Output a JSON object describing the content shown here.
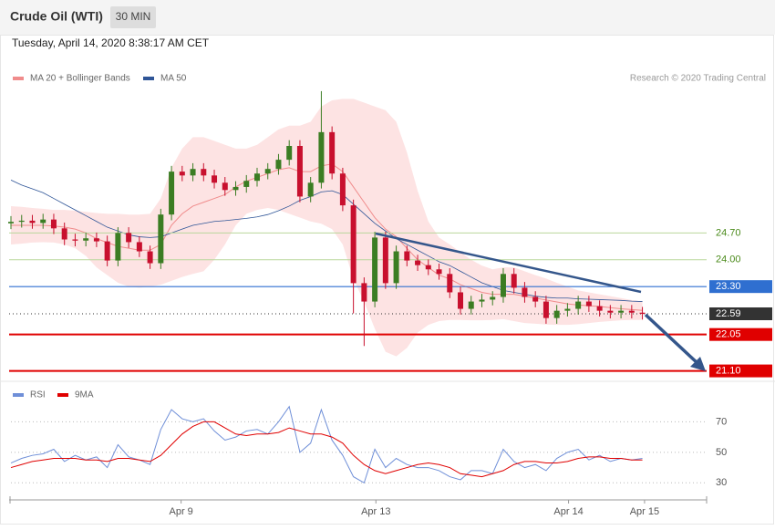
{
  "chart_data": {
    "type": "candlestick",
    "title": "Crude Oil (WTI)",
    "interval": "30 MIN",
    "subtitle": "Tuesday, April 14, 2020 8:38:17 AM CET",
    "credit": "Research © 2020 Trading Central",
    "xlim": [
      0,
      65
    ],
    "xticks": [
      {
        "value": 15.9,
        "label": "Apr 9"
      },
      {
        "value": 34.1,
        "label": "Apr 13"
      },
      {
        "value": 52.1,
        "label": "Apr 14"
      },
      {
        "value": 59.2,
        "label": "Apr 15"
      }
    ],
    "ylim": [
      20.9,
      29.35
    ],
    "up_color": "#3b7d23",
    "down_color": "#c8102e",
    "open": [
      24.95,
      24.99,
      25.02,
      24.96,
      25.05,
      24.82,
      24.53,
      24.5,
      24.56,
      24.48,
      23.98,
      24.7,
      24.46,
      24.22,
      23.91,
      25.18,
      26.3,
      26.2,
      26.37,
      26.2,
      26.01,
      25.82,
      25.9,
      26.06,
      26.25,
      26.37,
      26.61,
      26.97,
      25.65,
      26.01,
      27.33,
      26.25,
      25.42,
      23.39,
      22.91,
      24.58,
      23.39,
      24.22,
      23.98,
      23.86,
      23.75,
      23.63,
      23.15,
      22.72,
      22.91,
      22.96,
      23.03,
      23.63,
      23.27,
      23.03,
      22.91,
      22.48,
      22.67,
      22.72,
      22.91,
      22.79,
      22.67,
      22.62,
      22.67,
      22.62
    ],
    "high": [
      25.14,
      25.17,
      25.17,
      25.2,
      25.2,
      24.97,
      24.68,
      24.71,
      24.71,
      24.63,
      24.85,
      24.85,
      24.61,
      24.37,
      25.33,
      26.45,
      26.45,
      26.52,
      26.52,
      26.35,
      26.16,
      26.05,
      26.21,
      26.4,
      26.52,
      26.76,
      27.12,
      27.12,
      26.16,
      28.4,
      27.48,
      26.4,
      25.57,
      23.54,
      24.73,
      24.73,
      24.37,
      24.37,
      24.13,
      24.01,
      23.9,
      23.78,
      23.3,
      23.06,
      23.11,
      23.18,
      23.78,
      23.78,
      23.42,
      23.18,
      23.06,
      22.82,
      22.87,
      23.06,
      23.06,
      22.94,
      22.82,
      22.82,
      22.82,
      22.77
    ],
    "low": [
      24.8,
      24.84,
      24.81,
      24.81,
      24.67,
      24.38,
      24.35,
      24.35,
      24.33,
      23.83,
      23.83,
      24.31,
      24.07,
      23.76,
      23.76,
      25.03,
      26.05,
      26.05,
      26.05,
      25.86,
      25.67,
      25.67,
      25.75,
      25.91,
      26.1,
      26.22,
      26.46,
      25.5,
      25.5,
      25.86,
      26.1,
      25.27,
      22.6,
      21.75,
      22.76,
      23.24,
      23.24,
      23.83,
      23.71,
      23.6,
      23.48,
      23.0,
      22.57,
      22.57,
      22.76,
      22.81,
      22.88,
      23.12,
      22.88,
      22.76,
      22.33,
      22.33,
      22.52,
      22.57,
      22.64,
      22.52,
      22.47,
      22.47,
      22.47,
      22.44
    ],
    "close": [
      24.99,
      25.02,
      24.96,
      25.05,
      24.82,
      24.53,
      24.5,
      24.56,
      24.48,
      23.98,
      24.7,
      24.46,
      24.22,
      23.91,
      25.18,
      26.3,
      26.2,
      26.37,
      26.2,
      26.01,
      25.82,
      25.9,
      26.06,
      26.25,
      26.37,
      26.61,
      26.97,
      25.65,
      26.01,
      27.33,
      26.25,
      25.42,
      23.39,
      22.91,
      24.58,
      23.39,
      24.22,
      23.98,
      23.86,
      23.75,
      23.63,
      23.15,
      22.72,
      22.91,
      22.96,
      23.03,
      23.63,
      23.27,
      23.03,
      22.91,
      22.48,
      22.67,
      22.72,
      22.91,
      22.79,
      22.67,
      22.62,
      22.67,
      22.62,
      22.59
    ],
    "series": [
      {
        "name": "MA 20 + Bollinger Bands",
        "color": "#f08c8c",
        "values": [
          24.9,
          24.9,
          24.9,
          24.9,
          24.88,
          24.85,
          24.8,
          24.7,
          24.55,
          24.45,
          24.35,
          24.3,
          24.25,
          24.25,
          24.4,
          24.9,
          25.2,
          25.4,
          25.5,
          25.6,
          25.7,
          25.9,
          26.05,
          26.15,
          26.25,
          26.35,
          26.4,
          26.3,
          26.3,
          26.45,
          26.5,
          26.3,
          25.9,
          25.5,
          25.1,
          24.8,
          24.6,
          24.3,
          24.0,
          23.8,
          23.6,
          23.5,
          23.35,
          23.25,
          23.15,
          23.1,
          23.1,
          23.1,
          23.05,
          23.0,
          22.95,
          22.9,
          22.85,
          22.82,
          22.8,
          22.78,
          22.75,
          22.72,
          22.7,
          22.68
        ],
        "upper": [
          25.4,
          25.38,
          25.35,
          25.33,
          25.3,
          25.3,
          25.28,
          25.25,
          25.22,
          25.2,
          25.2,
          25.18,
          25.18,
          25.2,
          25.6,
          26.4,
          26.9,
          27.2,
          27.2,
          27.1,
          27.0,
          26.9,
          26.9,
          27.0,
          27.2,
          27.4,
          27.5,
          27.5,
          27.6,
          28.0,
          28.16,
          28.2,
          28.2,
          28.1,
          28.0,
          27.9,
          27.6,
          26.8,
          25.8,
          25.0,
          24.58,
          24.4,
          24.2,
          24.0,
          23.85,
          23.75,
          23.8,
          23.8,
          23.7,
          23.6,
          23.51,
          23.4,
          23.3,
          23.2,
          23.15,
          23.1,
          23.05,
          23.0,
          22.95,
          22.91
        ],
        "lower": [
          24.4,
          24.42,
          24.45,
          24.46,
          24.45,
          24.4,
          24.3,
          24.1,
          23.8,
          23.6,
          23.4,
          23.3,
          23.27,
          23.3,
          23.35,
          23.45,
          23.55,
          23.63,
          23.7,
          24.0,
          24.4,
          24.9,
          25.2,
          25.3,
          25.35,
          25.3,
          25.2,
          25.1,
          25.0,
          24.94,
          24.8,
          24.4,
          23.5,
          22.9,
          22.2,
          21.6,
          21.48,
          21.7,
          22.1,
          22.3,
          22.4,
          22.43,
          22.43,
          22.42,
          22.42,
          22.43,
          22.45,
          22.4,
          22.35,
          22.33,
          22.31,
          22.3,
          22.3,
          22.32,
          22.35,
          22.38,
          22.4,
          22.42,
          22.43,
          22.43
        ]
      },
      {
        "name": "MA 50",
        "color": "#2f5597",
        "values": [
          26.08,
          25.95,
          25.85,
          25.75,
          25.6,
          25.45,
          25.3,
          25.15,
          25.0,
          24.85,
          24.75,
          24.65,
          24.6,
          24.58,
          24.6,
          24.7,
          24.8,
          24.9,
          24.95,
          25.0,
          25.02,
          25.05,
          25.08,
          25.12,
          25.18,
          25.28,
          25.4,
          25.55,
          25.65,
          25.77,
          25.8,
          25.7,
          25.45,
          25.2,
          24.95,
          24.75,
          24.55,
          24.4,
          24.25,
          24.1,
          23.95,
          23.85,
          23.7,
          23.55,
          23.4,
          23.3,
          23.2,
          23.15,
          23.1,
          23.05,
          23.02,
          23.0,
          23.0,
          22.98,
          22.97,
          22.96,
          22.95,
          22.94,
          22.92,
          22.91
        ]
      }
    ],
    "levels": [
      {
        "value": 24.7,
        "label": "24.70",
        "color": "#b9d79b",
        "text_color": "#4a8a1a",
        "box": false
      },
      {
        "value": 24.0,
        "label": "24.00",
        "color": "#b9d79b",
        "text_color": "#4a8a1a",
        "box": false
      },
      {
        "value": 23.3,
        "label": "23.30",
        "color": "#2f6fd0",
        "text_color": "#ffffff",
        "box": true
      },
      {
        "value": 22.59,
        "label": "22.59",
        "color": "#333333",
        "text_color": "#ffffff",
        "box": true,
        "dotted": true
      },
      {
        "value": 22.05,
        "label": "22.05",
        "color": "#e00000",
        "text_color": "#ffffff",
        "box": true
      },
      {
        "value": 21.1,
        "label": "21.10",
        "color": "#e00000",
        "text_color": "#ffffff",
        "box": true
      }
    ],
    "rsi": {
      "ylim": [
        20,
        84
      ],
      "yticks": [
        30,
        50,
        70
      ],
      "series": [
        {
          "name": "RSI",
          "color": "#6f8fd8",
          "values": [
            43,
            46,
            48,
            49,
            52,
            44,
            48,
            45,
            47,
            40,
            55,
            47,
            45,
            42,
            65,
            78,
            72,
            70,
            72,
            64,
            58,
            60,
            64,
            65,
            62,
            70,
            80,
            50,
            56,
            78,
            58,
            48,
            34,
            30,
            52,
            40,
            46,
            42,
            40,
            40,
            38,
            34,
            32,
            38,
            38,
            36,
            52,
            44,
            40,
            42,
            38,
            46,
            50,
            52,
            45,
            48,
            44,
            46,
            45,
            46
          ]
        },
        {
          "name": "9MA",
          "color": "#e00000",
          "values": [
            40,
            42,
            44,
            45,
            46,
            46,
            46,
            45,
            45,
            44,
            46,
            46,
            45,
            44,
            48,
            55,
            62,
            67,
            70,
            70,
            66,
            62,
            61,
            62,
            62,
            63,
            66,
            64,
            62,
            62,
            60,
            56,
            48,
            42,
            38,
            36,
            38,
            40,
            42,
            43,
            42,
            40,
            36,
            35,
            34,
            36,
            38,
            42,
            44,
            44,
            43,
            43,
            44,
            46,
            47,
            47,
            46,
            46,
            45,
            45
          ]
        }
      ]
    }
  }
}
